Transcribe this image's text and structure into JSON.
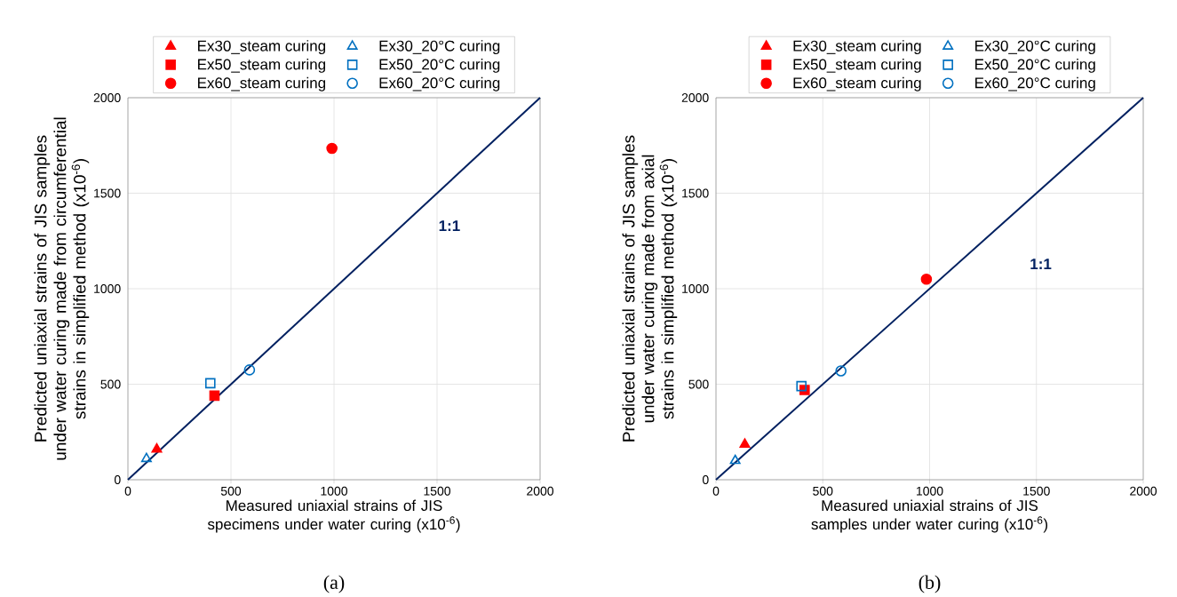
{
  "chart_data": [
    {
      "type": "scatter",
      "xlabel": "Measured uniaxial strains of JIS specimens under water curing (x10$^{-6}$)",
      "ylabel": "Predicted uniaxial strains of JIS samples under water curing made from circumferential strains in simplified method (x10$^{-6}$)",
      "xlim": [
        0,
        2000
      ],
      "ylim": [
        0,
        2000
      ],
      "xticks": [
        0,
        500,
        1000,
        1500,
        2000
      ],
      "yticks": [
        0,
        500,
        1000,
        1500,
        2000
      ],
      "grid": true,
      "legend": "top",
      "series": [
        {
          "name": "Ex30_steam curing",
          "color": "#ff0000",
          "marker": "triangle",
          "x": [
            140
          ],
          "values": [
            160
          ]
        },
        {
          "name": "Ex50_steam curing",
          "color": "#ff0000",
          "marker": "square",
          "x": [
            420
          ],
          "values": [
            440
          ]
        },
        {
          "name": "Ex60_steam curing",
          "color": "#ff0000",
          "marker": "circle",
          "x": [
            990
          ],
          "values": [
            1735
          ]
        },
        {
          "name": "Ex30_20°C curing",
          "color": "#0070c0",
          "marker": "triangle",
          "x": [
            90
          ],
          "values": [
            110
          ]
        },
        {
          "name": "Ex50_20°C curing",
          "color": "#0070c0",
          "marker": "square",
          "x": [
            400
          ],
          "values": [
            505
          ]
        },
        {
          "name": "Ex60_20°C curing",
          "color": "#0070c0",
          "marker": "circle",
          "x": [
            590
          ],
          "values": [
            575
          ]
        },
        {
          "type": "line",
          "color": "#002060",
          "marker": "none",
          "x": [
            0,
            2000
          ],
          "values": [
            0,
            2000
          ]
        }
      ],
      "annotations": [
        "1:1",
        "(a)"
      ]
    },
    {
      "type": "scatter",
      "xlabel": "Measured uniaxial strains of JIS samples under water curing (x10$^{-6}$)",
      "ylabel": "Predicted uniaxial strains of JIS samples under water curing made from axial strains in simplified method (x10$^{-6}$)",
      "xlim": [
        0,
        2000
      ],
      "ylim": [
        0,
        2000
      ],
      "xticks": [
        0,
        500,
        1000,
        1500,
        2000
      ],
      "yticks": [
        0,
        500,
        1000,
        1500,
        2000
      ],
      "grid": true,
      "legend": "top",
      "series": [
        {
          "name": "Ex30_steam curing",
          "color": "#ff0000",
          "marker": "triangle",
          "x": [
            135
          ],
          "values": [
            185
          ]
        },
        {
          "name": "Ex50_steam curing",
          "color": "#ff0000",
          "marker": "square",
          "x": [
            415
          ],
          "values": [
            470
          ]
        },
        {
          "name": "Ex60_steam curing",
          "color": "#ff0000",
          "marker": "circle",
          "x": [
            985
          ],
          "values": [
            1050
          ]
        },
        {
          "name": "Ex30_20°C curing",
          "color": "#0070c0",
          "marker": "triangle",
          "x": [
            90
          ],
          "values": [
            100
          ]
        },
        {
          "name": "Ex50_20°C curing",
          "color": "#0070c0",
          "marker": "square",
          "x": [
            400
          ],
          "values": [
            490
          ]
        },
        {
          "name": "Ex60_20°C curing",
          "color": "#0070c0",
          "marker": "circle",
          "x": [
            585
          ],
          "values": [
            570
          ]
        },
        {
          "type": "line",
          "color": "#002060",
          "marker": "none",
          "x": [
            0,
            2000
          ],
          "values": [
            0,
            2000
          ]
        }
      ],
      "annotations": [
        "1:1",
        "(b)"
      ]
    }
  ]
}
